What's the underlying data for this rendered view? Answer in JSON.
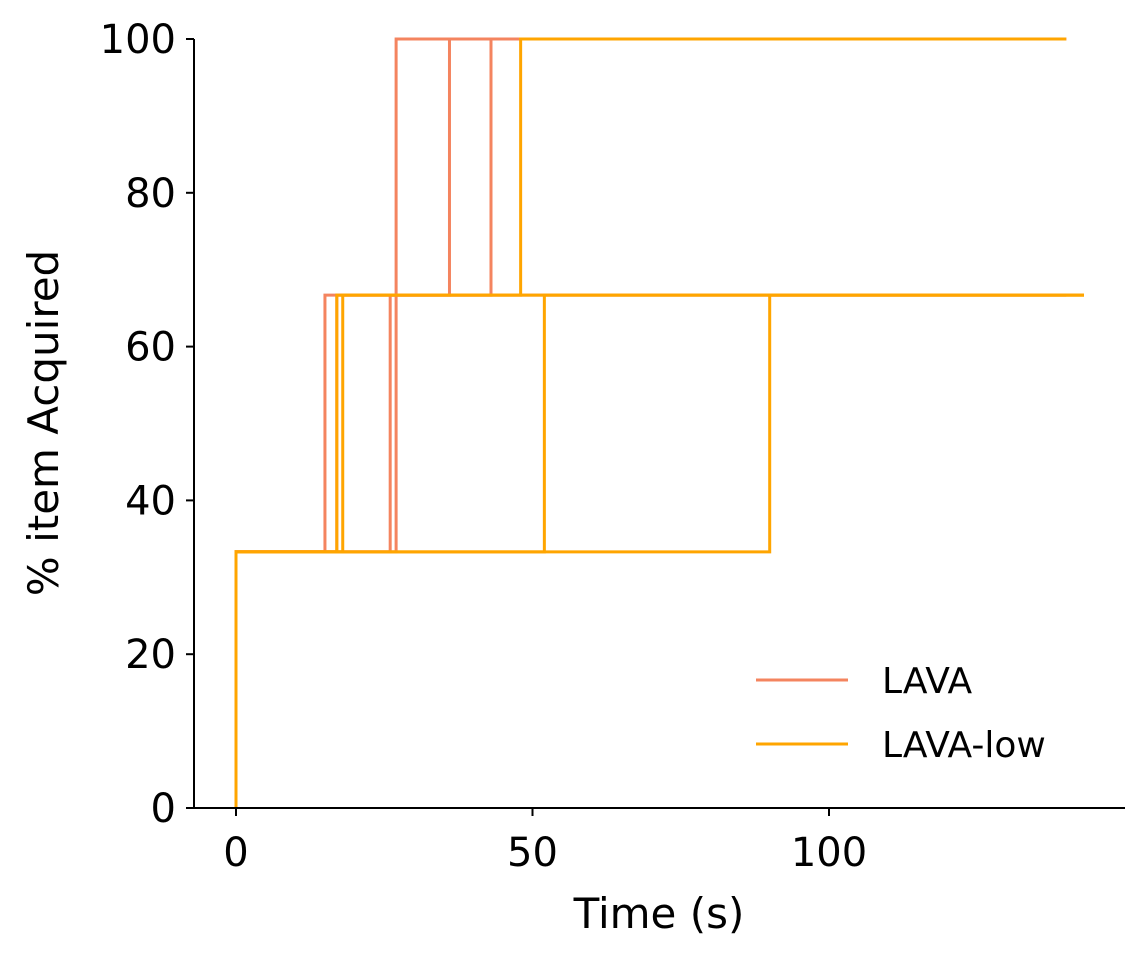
{
  "chart_data": {
    "type": "line",
    "xlabel": "Time (s)",
    "ylabel": "% item Acquired",
    "xlim": [
      -7,
      150
    ],
    "ylim": [
      0,
      100
    ],
    "xticks": [
      0,
      50,
      100
    ],
    "yticks": [
      0,
      20,
      40,
      60,
      80,
      100
    ],
    "grid": false,
    "legend_position": "lower-right",
    "step": "post",
    "colors": {
      "LAVA": "#F4845F",
      "LAVA-low": "#FFA500"
    },
    "series": [
      {
        "name": "LAVA",
        "color": "#F4845F",
        "x": [
          0,
          0,
          15,
          27,
          140
        ],
        "y": [
          0,
          33.3,
          66.7,
          100,
          100
        ]
      },
      {
        "name": "",
        "color": "#F4845F",
        "x": [
          0,
          0,
          26,
          36,
          140
        ],
        "y": [
          0,
          33.3,
          66.7,
          100,
          100
        ]
      },
      {
        "name": "",
        "color": "#F4845F",
        "x": [
          0,
          0,
          17,
          43,
          140
        ],
        "y": [
          0,
          33.3,
          66.7,
          100,
          100
        ]
      },
      {
        "name": "",
        "color": "#F4845F",
        "x": [
          0,
          0,
          27,
          140
        ],
        "y": [
          0,
          33.3,
          66.7,
          66.7
        ]
      },
      {
        "name": "LAVA-low",
        "color": "#FFA500",
        "x": [
          0,
          0,
          18,
          48,
          140
        ],
        "y": [
          0,
          33.3,
          66.7,
          100,
          100
        ]
      },
      {
        "name": "",
        "color": "#FFA500",
        "x": [
          0,
          0,
          17,
          143
        ],
        "y": [
          0,
          33.3,
          66.7,
          66.7
        ]
      },
      {
        "name": "",
        "color": "#FFA500",
        "x": [
          0,
          0,
          52,
          143
        ],
        "y": [
          0,
          33.3,
          66.7,
          66.7
        ]
      },
      {
        "name": "",
        "color": "#FFA500",
        "x": [
          0,
          0,
          90,
          143
        ],
        "y": [
          0,
          33.3,
          66.7,
          66.7
        ]
      }
    ],
    "legend": [
      "LAVA",
      "LAVA-low"
    ]
  }
}
